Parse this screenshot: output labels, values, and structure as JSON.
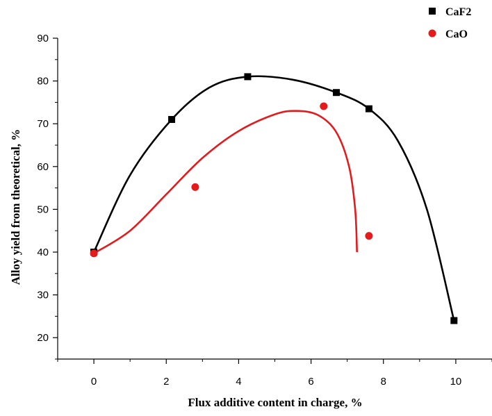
{
  "chart_data": {
    "type": "scatter",
    "title": "",
    "xlabel": "Flux additive content in charge, %",
    "ylabel": "Alloy yield from theoretical, %",
    "xlim": [
      -1,
      11
    ],
    "ylim": [
      15,
      90
    ],
    "x_ticks": [
      "0",
      "2",
      "4",
      "6",
      "8",
      "10"
    ],
    "y_ticks": [
      "20",
      "30",
      "40",
      "50",
      "60",
      "70",
      "80",
      "90"
    ],
    "legend_position": "top-right",
    "grid": false,
    "series": [
      {
        "name": "CaF2",
        "color": "#000000",
        "marker": "square",
        "points": [
          [
            0,
            40
          ],
          [
            2.15,
            71
          ],
          [
            4.25,
            81
          ],
          [
            6.7,
            77.3
          ],
          [
            7.6,
            73.5
          ],
          [
            9.95,
            24
          ]
        ],
        "curve": [
          [
            0,
            40
          ],
          [
            1,
            58
          ],
          [
            2.15,
            71
          ],
          [
            3.2,
            78.5
          ],
          [
            4.25,
            81
          ],
          [
            5.5,
            80.3
          ],
          [
            6.7,
            77.3
          ],
          [
            7.6,
            73.5
          ],
          [
            8.4,
            66
          ],
          [
            9.2,
            50
          ],
          [
            9.95,
            24
          ]
        ]
      },
      {
        "name": "CaO",
        "color": "#e41a1c",
        "marker": "circle",
        "points": [
          [
            0,
            39.7
          ],
          [
            2.8,
            55.2
          ],
          [
            6.35,
            74.1
          ],
          [
            7.6,
            43.8
          ]
        ],
        "curve": [
          [
            0,
            39.7
          ],
          [
            1,
            45
          ],
          [
            2,
            53.5
          ],
          [
            3,
            62
          ],
          [
            4,
            68.3
          ],
          [
            5,
            72.2
          ],
          [
            5.6,
            73
          ],
          [
            6.2,
            72
          ],
          [
            6.7,
            68
          ],
          [
            7.05,
            60
          ],
          [
            7.22,
            50
          ],
          [
            7.27,
            40
          ]
        ]
      }
    ]
  }
}
